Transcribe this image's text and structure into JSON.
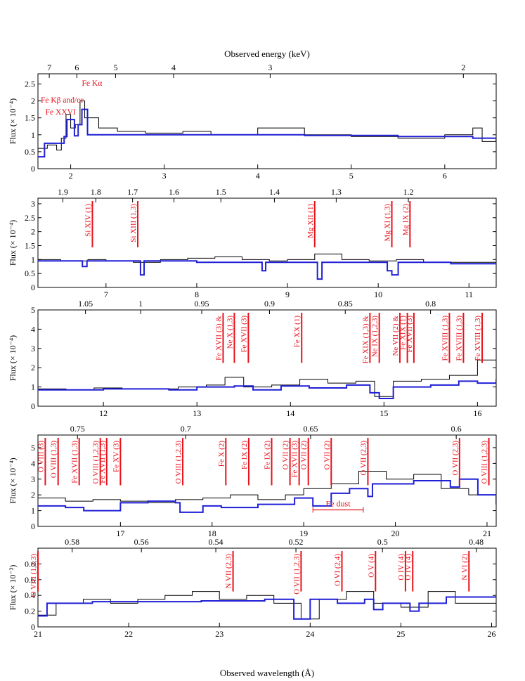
{
  "figure": {
    "top_axis_title": "Observed energy (keV)",
    "bottom_axis_title": "Observed wavelength (Å)",
    "colors": {
      "data": "#000000",
      "model": "#1f1fd6",
      "lines": "#e8111b"
    }
  },
  "chart_data": [
    {
      "type": "line",
      "panel": 1,
      "x_range": [
        1.65,
        6.55
      ],
      "ylim": [
        0,
        2.8
      ],
      "ylabel": "Flux (× 10⁻⁴)",
      "yticks": [
        0,
        0.5,
        1,
        1.5,
        2,
        2.5
      ],
      "yticks_labels": [
        "0",
        "0.5",
        "1",
        "1.5",
        "2",
        "2.5"
      ],
      "xticks": [
        2,
        3,
        4,
        5,
        6
      ],
      "top_ticks": [
        {
          "label": "7",
          "x": 1.771
        },
        {
          "label": "6",
          "x": 2.066
        },
        {
          "label": "5",
          "x": 2.48
        },
        {
          "label": "4",
          "x": 3.1
        },
        {
          "label": "3",
          "x": 4.133
        },
        {
          "label": "2",
          "x": 6.199
        }
      ],
      "data": [
        [
          1.65,
          0.6
        ],
        [
          1.75,
          0.7
        ],
        [
          1.85,
          0.55
        ],
        [
          1.9,
          0.9
        ],
        [
          1.95,
          1.6
        ],
        [
          2.0,
          1.2
        ],
        [
          2.05,
          1.3
        ],
        [
          2.1,
          2.0
        ],
        [
          2.15,
          1.5
        ],
        [
          2.3,
          1.2
        ],
        [
          2.5,
          1.1
        ],
        [
          2.8,
          1.05
        ],
        [
          3.2,
          1.1
        ],
        [
          3.5,
          1.0
        ],
        [
          4.0,
          1.2
        ],
        [
          4.5,
          1.0
        ],
        [
          5.0,
          0.95
        ],
        [
          5.5,
          0.9
        ],
        [
          6.0,
          1.0
        ],
        [
          6.3,
          1.2
        ],
        [
          6.4,
          0.8
        ],
        [
          6.55,
          0.8
        ]
      ],
      "model": [
        [
          1.65,
          0.35
        ],
        [
          1.72,
          0.75
        ],
        [
          1.93,
          0.95
        ],
        [
          1.96,
          1.45
        ],
        [
          2.04,
          0.97
        ],
        [
          2.08,
          1.3
        ],
        [
          2.12,
          1.75
        ],
        [
          2.18,
          1.0
        ],
        [
          2.5,
          1.0
        ],
        [
          3.5,
          1.0
        ],
        [
          4.5,
          0.98
        ],
        [
          5.5,
          0.95
        ],
        [
          6.3,
          0.9
        ],
        [
          6.55,
          0.8
        ]
      ],
      "annotations": [
        {
          "text": "Fe Kβ and/or",
          "x": 1.68,
          "y": 1.95
        },
        {
          "text": "Fe XXVI",
          "x": 1.73,
          "y": 1.6
        },
        {
          "text": "Fe Kα",
          "x": 2.12,
          "y": 2.45
        }
      ]
    },
    {
      "type": "line",
      "panel": 2,
      "x_range": [
        6.25,
        11.3
      ],
      "ylim": [
        0,
        3.2
      ],
      "ylabel": "Flux (× 10⁻⁴)",
      "yticks": [
        0,
        0.5,
        1,
        1.5,
        2,
        2.5,
        3
      ],
      "yticks_labels": [
        "0",
        "0.5",
        "1",
        "1.5",
        "2",
        "2.5",
        "3"
      ],
      "xticks": [
        7,
        8,
        9,
        10,
        11
      ],
      "top_ticks": [
        {
          "label": "1.9",
          "x": 6.525
        },
        {
          "label": "1.8",
          "x": 6.888
        },
        {
          "label": "1.7",
          "x": 7.293
        },
        {
          "label": "1.6",
          "x": 7.749
        },
        {
          "label": "1.5",
          "x": 8.266
        },
        {
          "label": "1.4",
          "x": 8.856
        },
        {
          "label": "1.3",
          "x": 9.537
        },
        {
          "label": "1.2",
          "x": 10.332
        }
      ],
      "data": [
        [
          6.25,
          1.0
        ],
        [
          6.5,
          0.95
        ],
        [
          6.8,
          1.0
        ],
        [
          7.0,
          0.95
        ],
        [
          7.3,
          0.9
        ],
        [
          7.6,
          1.0
        ],
        [
          7.9,
          1.05
        ],
        [
          8.2,
          1.1
        ],
        [
          8.5,
          1.0
        ],
        [
          8.8,
          0.95
        ],
        [
          9.0,
          1.0
        ],
        [
          9.3,
          1.2
        ],
        [
          9.6,
          1.0
        ],
        [
          9.9,
          0.95
        ],
        [
          10.2,
          1.0
        ],
        [
          10.5,
          0.9
        ],
        [
          10.8,
          0.9
        ],
        [
          11.1,
          0.9
        ],
        [
          11.3,
          0.95
        ]
      ],
      "model": [
        [
          6.25,
          0.95
        ],
        [
          6.7,
          0.95
        ],
        [
          6.74,
          0.75
        ],
        [
          6.79,
          0.95
        ],
        [
          7.36,
          0.95
        ],
        [
          7.38,
          0.45
        ],
        [
          7.42,
          0.95
        ],
        [
          8.0,
          0.9
        ],
        [
          8.7,
          0.9
        ],
        [
          8.72,
          0.6
        ],
        [
          8.76,
          0.9
        ],
        [
          9.3,
          0.9
        ],
        [
          9.33,
          0.3
        ],
        [
          9.38,
          0.9
        ],
        [
          10.0,
          0.9
        ],
        [
          10.1,
          0.6
        ],
        [
          10.15,
          0.45
        ],
        [
          10.22,
          0.9
        ],
        [
          10.8,
          0.85
        ],
        [
          11.3,
          0.85
        ]
      ],
      "annotations": [
        {
          "text": "Si XIV (1)",
          "x": 6.85
        },
        {
          "text": "Si XIII (1,3)",
          "x": 7.35
        },
        {
          "text": "Mg XII (1)",
          "x": 9.3
        },
        {
          "text": "Mg XI (1,3)",
          "x": 10.15
        },
        {
          "text": "Mg IX (2)",
          "x": 10.35
        }
      ]
    },
    {
      "type": "line",
      "panel": 3,
      "x_range": [
        11.3,
        16.2
      ],
      "ylim": [
        0,
        5
      ],
      "ylabel": "Flux (× 10⁻⁴)",
      "yticks": [
        0,
        1,
        2,
        3,
        4,
        5
      ],
      "yticks_labels": [
        "0",
        "1",
        "2",
        "3",
        "4",
        "5"
      ],
      "xticks": [
        12,
        13,
        14,
        15,
        16
      ],
      "top_ticks": [
        {
          "label": "1.05",
          "x": 11.808
        },
        {
          "label": "1",
          "x": 12.398
        },
        {
          "label": "0.95",
          "x": 13.051
        },
        {
          "label": "0.9",
          "x": 13.776
        },
        {
          "label": "0.85",
          "x": 14.586
        },
        {
          "label": "0.8",
          "x": 15.498
        }
      ],
      "data": [
        [
          11.3,
          0.9
        ],
        [
          11.6,
          0.85
        ],
        [
          11.9,
          0.95
        ],
        [
          12.2,
          0.9
        ],
        [
          12.5,
          0.9
        ],
        [
          12.8,
          1.0
        ],
        [
          13.1,
          1.1
        ],
        [
          13.3,
          1.5
        ],
        [
          13.5,
          1.0
        ],
        [
          13.8,
          1.1
        ],
        [
          14.1,
          1.4
        ],
        [
          14.4,
          1.2
        ],
        [
          14.7,
          1.3
        ],
        [
          14.9,
          0.5
        ],
        [
          15.1,
          1.3
        ],
        [
          15.4,
          1.4
        ],
        [
          15.7,
          1.6
        ],
        [
          16.0,
          2.4
        ],
        [
          16.2,
          1.5
        ]
      ],
      "model": [
        [
          11.3,
          0.85
        ],
        [
          12.0,
          0.9
        ],
        [
          12.7,
          0.85
        ],
        [
          13.0,
          1.0
        ],
        [
          13.4,
          1.05
        ],
        [
          13.6,
          0.85
        ],
        [
          13.9,
          1.05
        ],
        [
          14.2,
          0.95
        ],
        [
          14.6,
          1.1
        ],
        [
          14.85,
          0.7
        ],
        [
          14.95,
          0.4
        ],
        [
          15.1,
          1.0
        ],
        [
          15.5,
          1.1
        ],
        [
          15.8,
          1.3
        ],
        [
          16.0,
          1.2
        ],
        [
          16.2,
          1.4
        ]
      ],
      "annotations": [
        {
          "text": "Fe XVII (3) &",
          "x": 13.28
        },
        {
          "text": "Ne X (1,3)",
          "x": 13.4
        },
        {
          "text": "Fe XVII (3)",
          "x": 13.55
        },
        {
          "text": "Fe XX (1)",
          "x": 14.12
        },
        {
          "text": "Fe XIX (1,3) &",
          "x": 14.85
        },
        {
          "text": "Ne IX (1,2,3)",
          "x": 14.95
        },
        {
          "text": "Ne VII (2) &",
          "x": 15.17
        },
        {
          "text": "Fe XIX (1)",
          "x": 15.25
        },
        {
          "text": "Fe XVII (3)",
          "x": 15.32
        },
        {
          "text": "Fe XVIII (1,3)",
          "x": 15.7
        },
        {
          "text": "Fe XVIII (1,3)",
          "x": 15.85
        },
        {
          "text": "Fe XVIII (1,3)",
          "x": 16.05
        }
      ]
    },
    {
      "type": "line",
      "panel": 4,
      "x_range": [
        16.1,
        21.1
      ],
      "ylim": [
        0,
        5.8
      ],
      "ylabel": "Flux (× 10⁻⁴)",
      "yticks": [
        0,
        1,
        2,
        3,
        4,
        5
      ],
      "yticks_labels": [
        "0",
        "1",
        "2",
        "3",
        "4",
        "5"
      ],
      "xticks": [
        17,
        18,
        19,
        20,
        21
      ],
      "top_ticks": [
        {
          "label": "0.75",
          "x": 16.531
        },
        {
          "label": "0.7",
          "x": 17.712
        },
        {
          "label": "0.65",
          "x": 19.075
        },
        {
          "label": "0.6",
          "x": 20.664
        }
      ],
      "data": [
        [
          16.1,
          1.8
        ],
        [
          16.4,
          1.6
        ],
        [
          16.7,
          1.7
        ],
        [
          17.0,
          1.6
        ],
        [
          17.3,
          1.5
        ],
        [
          17.6,
          1.7
        ],
        [
          17.9,
          1.8
        ],
        [
          18.2,
          2.0
        ],
        [
          18.5,
          1.7
        ],
        [
          18.8,
          2.0
        ],
        [
          19.0,
          2.4
        ],
        [
          19.3,
          2.7
        ],
        [
          19.6,
          3.5
        ],
        [
          19.9,
          3.0
        ],
        [
          20.2,
          3.3
        ],
        [
          20.5,
          2.4
        ],
        [
          20.8,
          2.0
        ],
        [
          21.1,
          1.4
        ]
      ],
      "model": [
        [
          16.1,
          1.3
        ],
        [
          16.4,
          1.2
        ],
        [
          16.6,
          1.0
        ],
        [
          17.0,
          1.5
        ],
        [
          17.3,
          1.6
        ],
        [
          17.6,
          1.5
        ],
        [
          17.65,
          0.9
        ],
        [
          17.9,
          1.3
        ],
        [
          18.1,
          1.2
        ],
        [
          18.5,
          1.4
        ],
        [
          18.9,
          1.8
        ],
        [
          19.1,
          1.3
        ],
        [
          19.3,
          2.1
        ],
        [
          19.5,
          2.4
        ],
        [
          19.7,
          1.9
        ],
        [
          19.75,
          2.7
        ],
        [
          20.2,
          2.9
        ],
        [
          20.6,
          2.5
        ],
        [
          20.7,
          3.0
        ],
        [
          20.9,
          2.0
        ],
        [
          21.1,
          1.4
        ]
      ],
      "annotations": [
        {
          "text": "O VIII (3)",
          "x": 16.18
        },
        {
          "text": "O VIII (1,3)",
          "x": 16.32
        },
        {
          "text": "Fe XVII (1,3)",
          "x": 16.55
        },
        {
          "text": "O VIII (1,2,3)",
          "x": 16.78
        },
        {
          "text": "Fe XVII (1,3)",
          "x": 16.85
        },
        {
          "text": "Fe XV (3)",
          "x": 17.0
        },
        {
          "text": "O VIII (1,2,3)",
          "x": 17.68
        },
        {
          "text": "Fe X (2)",
          "x": 18.15
        },
        {
          "text": "Fe IX (2)",
          "x": 18.4
        },
        {
          "text": "Fe IX (2)",
          "x": 18.65
        },
        {
          "text": "O VII (2)",
          "x": 18.85
        },
        {
          "text": "Fe XVII (3)",
          "x": 18.95
        },
        {
          "text": "O VII (2)",
          "x": 19.05
        },
        {
          "text": "O VII (2)",
          "x": 19.3
        },
        {
          "text": "O VII (2,3)",
          "x": 19.7
        },
        {
          "text": "O VII (2,3)",
          "x": 20.7
        },
        {
          "text": "O VIII (1,2,3)",
          "x": 21.02
        },
        {
          "text": "Fe dust",
          "x": 19.36,
          "y": 1.05
        }
      ]
    },
    {
      "type": "line",
      "panel": 5,
      "x_range": [
        21.0,
        26.05
      ],
      "ylim": [
        0,
        1.0
      ],
      "ylabel": "Flux (× 10⁻³)",
      "yticks": [
        0,
        0.2,
        0.4,
        0.6,
        0.8
      ],
      "yticks_labels": [
        "0",
        "0.2",
        "0.4",
        "0.6",
        "0.8"
      ],
      "xticks": [
        21,
        22,
        23,
        24,
        25,
        26
      ],
      "xlabel": "Observed wavelength (Å)",
      "top_ticks": [
        {
          "label": "0.58",
          "x": 21.377
        },
        {
          "label": "0.56",
          "x": 22.14
        },
        {
          "label": "0.54",
          "x": 22.96
        },
        {
          "label": "0.52",
          "x": 23.843
        },
        {
          "label": "0.5",
          "x": 24.797
        },
        {
          "label": "0.48",
          "x": 25.83
        }
      ],
      "data": [
        [
          21.0,
          0.15
        ],
        [
          21.2,
          0.3
        ],
        [
          21.5,
          0.35
        ],
        [
          21.8,
          0.3
        ],
        [
          22.1,
          0.35
        ],
        [
          22.4,
          0.4
        ],
        [
          22.7,
          0.45
        ],
        [
          23.0,
          0.35
        ],
        [
          23.3,
          0.4
        ],
        [
          23.6,
          0.3
        ],
        [
          23.9,
          0.1
        ],
        [
          24.1,
          0.35
        ],
        [
          24.4,
          0.45
        ],
        [
          24.7,
          0.3
        ],
        [
          25.0,
          0.25
        ],
        [
          25.3,
          0.45
        ],
        [
          25.6,
          0.3
        ],
        [
          26.05,
          0.35
        ]
      ],
      "model": [
        [
          21.0,
          0.14
        ],
        [
          21.1,
          0.3
        ],
        [
          21.6,
          0.32
        ],
        [
          22.0,
          0.32
        ],
        [
          22.8,
          0.33
        ],
        [
          23.5,
          0.35
        ],
        [
          23.8,
          0.35
        ],
        [
          23.82,
          0.1
        ],
        [
          23.95,
          0.1
        ],
        [
          24.0,
          0.35
        ],
        [
          24.3,
          0.3
        ],
        [
          24.6,
          0.35
        ],
        [
          24.7,
          0.22
        ],
        [
          24.8,
          0.3
        ],
        [
          25.1,
          0.2
        ],
        [
          25.2,
          0.3
        ],
        [
          25.5,
          0.38
        ],
        [
          26.05,
          0.38
        ]
      ],
      "annotations": [
        {
          "text": "O VIII (1,2,3)",
          "x": 21.0
        },
        {
          "text": "N VII (2,3)",
          "x": 23.15
        },
        {
          "text": "O VII (1,2,3)",
          "x": 23.9
        },
        {
          "text": "O VI (2,4)",
          "x": 24.35
        },
        {
          "text": "O V (4)",
          "x": 24.72
        },
        {
          "text": "O IV (4)",
          "x": 25.05
        },
        {
          "text": "O IV (4)",
          "x": 25.13
        },
        {
          "text": "N VI (2)",
          "x": 25.75
        }
      ]
    }
  ]
}
